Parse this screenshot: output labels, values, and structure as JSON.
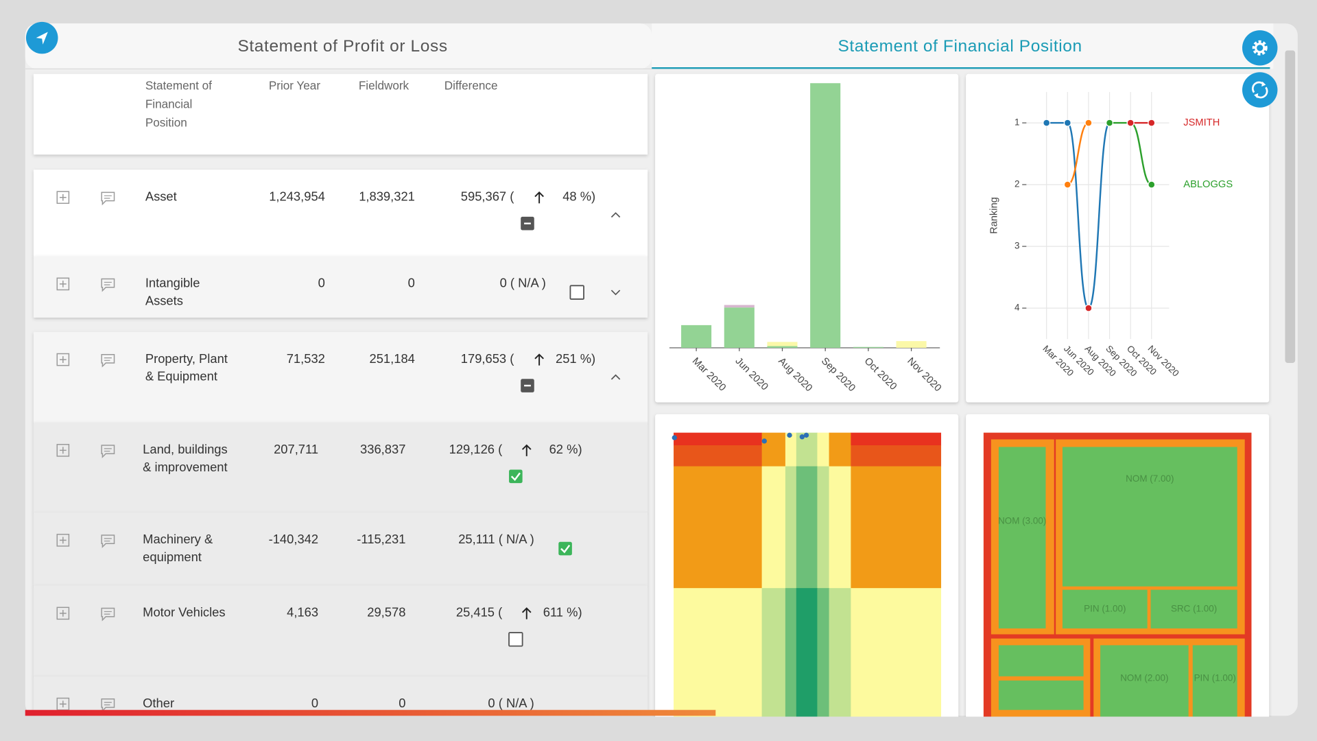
{
  "tabs": [
    "Statement of Profit or Loss",
    "Statement of Financial Position"
  ],
  "active_tab": 1,
  "table": {
    "columns": [
      [
        "Statement of",
        "Financial",
        "Position"
      ],
      "Prior Year",
      "Fieldwork",
      "Difference"
    ],
    "rows": [
      {
        "label": [
          "Asset"
        ],
        "prior_year": "1,243,954",
        "fieldwork": "1,839,321",
        "difference": "595,367 (",
        "change": "48 %)",
        "status": "partial",
        "expanded": true,
        "children": [
          {
            "label": [
              "Intangible",
              "Assets"
            ],
            "prior_year": "0",
            "fieldwork": "0",
            "difference": "0 ( N/A )",
            "status": "unchecked",
            "expanded": false
          },
          {
            "label": [
              "Property, Plant",
              "& Equipment"
            ],
            "prior_year": "71,532",
            "fieldwork": "251,184",
            "difference": "179,653 (",
            "change": "251 %)",
            "status": "partial",
            "expanded": true,
            "children": [
              {
                "label": [
                  "Land, buildings",
                  "& improvement"
                ],
                "prior_year": "207,711",
                "fieldwork": "336,837",
                "difference": "129,126 (",
                "change": "62 %)",
                "status": "checked"
              },
              {
                "label": [
                  "Machinery &",
                  "equipment"
                ],
                "prior_year": "-140,342",
                "fieldwork": "-115,231",
                "difference": "25,111 ( N/A )",
                "status": "checked"
              },
              {
                "label": [
                  "Motor Vehicles"
                ],
                "prior_year": "4,163",
                "fieldwork": "29,578",
                "difference": "25,415 (",
                "change": "611 %)",
                "status": "unchecked"
              },
              {
                "label": [
                  "Other"
                ],
                "prior_year": "0",
                "fieldwork": "0",
                "difference": "0 ( N/A )"
              }
            ]
          }
        ]
      }
    ]
  },
  "chart_data": [
    {
      "type": "bar",
      "stacked": true,
      "categories": [
        "Mar 2020",
        "Jun 2020",
        "Aug 2020",
        "Sep 2020",
        "Oct 2020",
        "Nov 2020"
      ],
      "series": [
        {
          "color": "#93d394",
          "values": [
            27,
            48,
            2,
            315,
            1,
            0
          ]
        },
        {
          "color": "#d7b6cf",
          "values": [
            0,
            3,
            0,
            0,
            0,
            0
          ]
        },
        {
          "color": "#fbf8a8",
          "values": [
            0,
            0,
            5,
            0,
            0,
            8
          ]
        }
      ]
    },
    {
      "type": "line",
      "smooth": true,
      "y_label": "Ranking",
      "categories": [
        "Mar 2020",
        "Jun 2020",
        "Aug 2020",
        "Sep 2020",
        "Oct 2020",
        "Nov 2020"
      ],
      "ylim": [
        4.5,
        0.5
      ],
      "yticks": [
        1,
        2,
        3,
        4
      ],
      "grid": true,
      "series": [
        {
          "color": "#1f77b4",
          "values": [
            1,
            1,
            4,
            1,
            null,
            null
          ]
        },
        {
          "color": "#ff7f0e",
          "values": [
            null,
            2,
            1,
            null,
            null,
            null
          ]
        },
        {
          "name": "ABLOGGS",
          "color": "#2ca02c",
          "values": [
            null,
            null,
            null,
            1,
            1,
            2
          ]
        },
        {
          "name": "JSMITH",
          "color": "#d62728",
          "values": [
            null,
            null,
            4,
            null,
            1,
            1
          ]
        }
      ]
    },
    {
      "type": "heatmap",
      "colorscale": [
        "#e8321f",
        "#e8561a",
        "#f29b17",
        "#fdfa9e",
        "#c2e291",
        "#6dbf79",
        "#1f9e68"
      ],
      "z": [
        [
          0,
          2,
          3,
          4,
          3,
          2,
          0
        ],
        [
          1,
          2,
          3,
          4,
          3,
          2,
          1
        ],
        [
          2,
          3,
          4,
          5,
          4,
          3,
          2
        ],
        [
          3,
          4,
          5,
          6,
          5,
          4,
          3
        ]
      ]
    },
    {
      "type": "treemap",
      "colors": {
        "root": "#e33a24",
        "group": "#f7931e",
        "leaf": "#66bf5f"
      },
      "nodes": [
        {
          "label": "NOM (3.00)",
          "value": 3
        },
        {
          "label": "NOM (7.00)",
          "value": 7
        },
        {
          "label": "PIN (1.00)",
          "value": 1
        },
        {
          "label": "SRC (1.00)",
          "value": 1
        },
        {
          "label": "NOM (2.00)",
          "value": 2
        },
        {
          "label": "PIN (1.00)",
          "value": 1
        }
      ]
    }
  ]
}
